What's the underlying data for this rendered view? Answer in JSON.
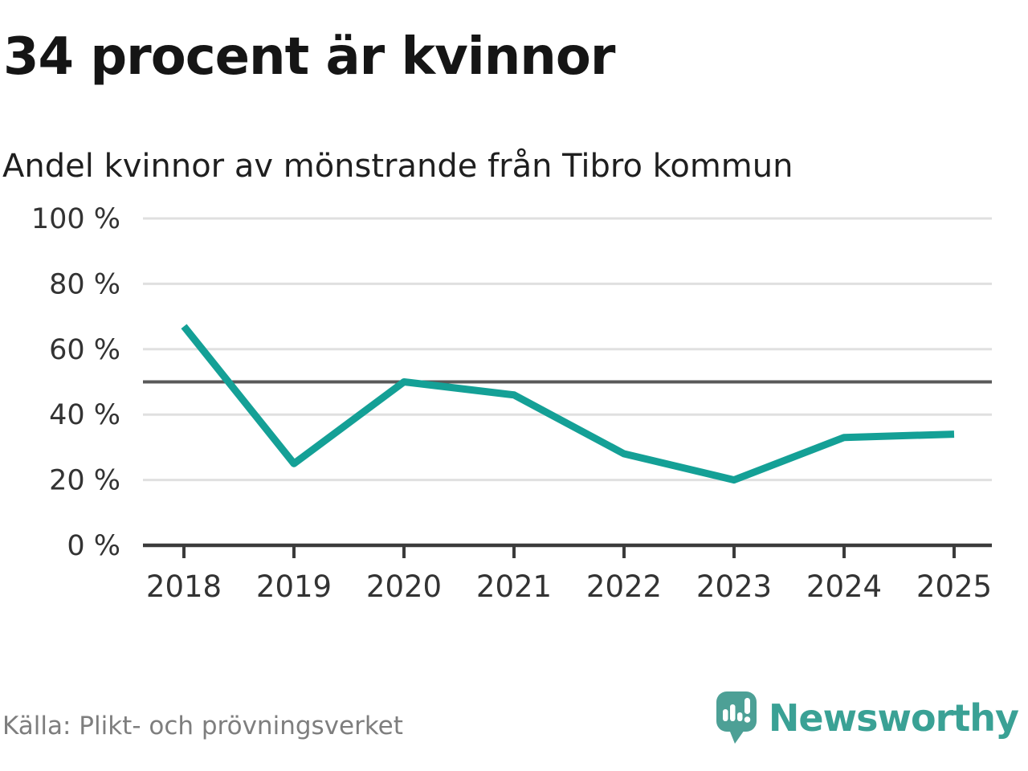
{
  "header": {
    "title": "34 procent är kvinnor",
    "subtitle": "Andel kvinnor av mönstrande från Tibro kommun"
  },
  "chart_data": {
    "type": "line",
    "series_name": "Andel kvinnor av mönstrande",
    "x": [
      2018,
      2019,
      2020,
      2021,
      2022,
      2023,
      2024,
      2025
    ],
    "x_tick_labels": [
      "2018",
      "2019",
      "2020",
      "2021",
      "2022",
      "2023",
      "2024",
      "2025"
    ],
    "values": [
      67,
      25,
      50,
      46,
      28,
      20,
      33,
      34
    ],
    "unit": "%",
    "ylim": [
      0,
      100
    ],
    "y_ticks": [
      0,
      20,
      40,
      60,
      80,
      100
    ],
    "y_tick_labels": [
      "0 %",
      "20 %",
      "40 %",
      "60 %",
      "80 %",
      "100 %"
    ],
    "reference_line": 50,
    "grid": true,
    "legend": "none"
  },
  "footer": {
    "source": "Källa: Plikt- och prövningsverket",
    "brand": "Newsworthy"
  },
  "colors": {
    "line": "#14a096",
    "brand": "#3aa195",
    "brand-bubble": "#4da096",
    "axis": "#3b3b3b",
    "grid": "#e0e0e0",
    "reference": "#595959",
    "tick-text": "#333333"
  }
}
